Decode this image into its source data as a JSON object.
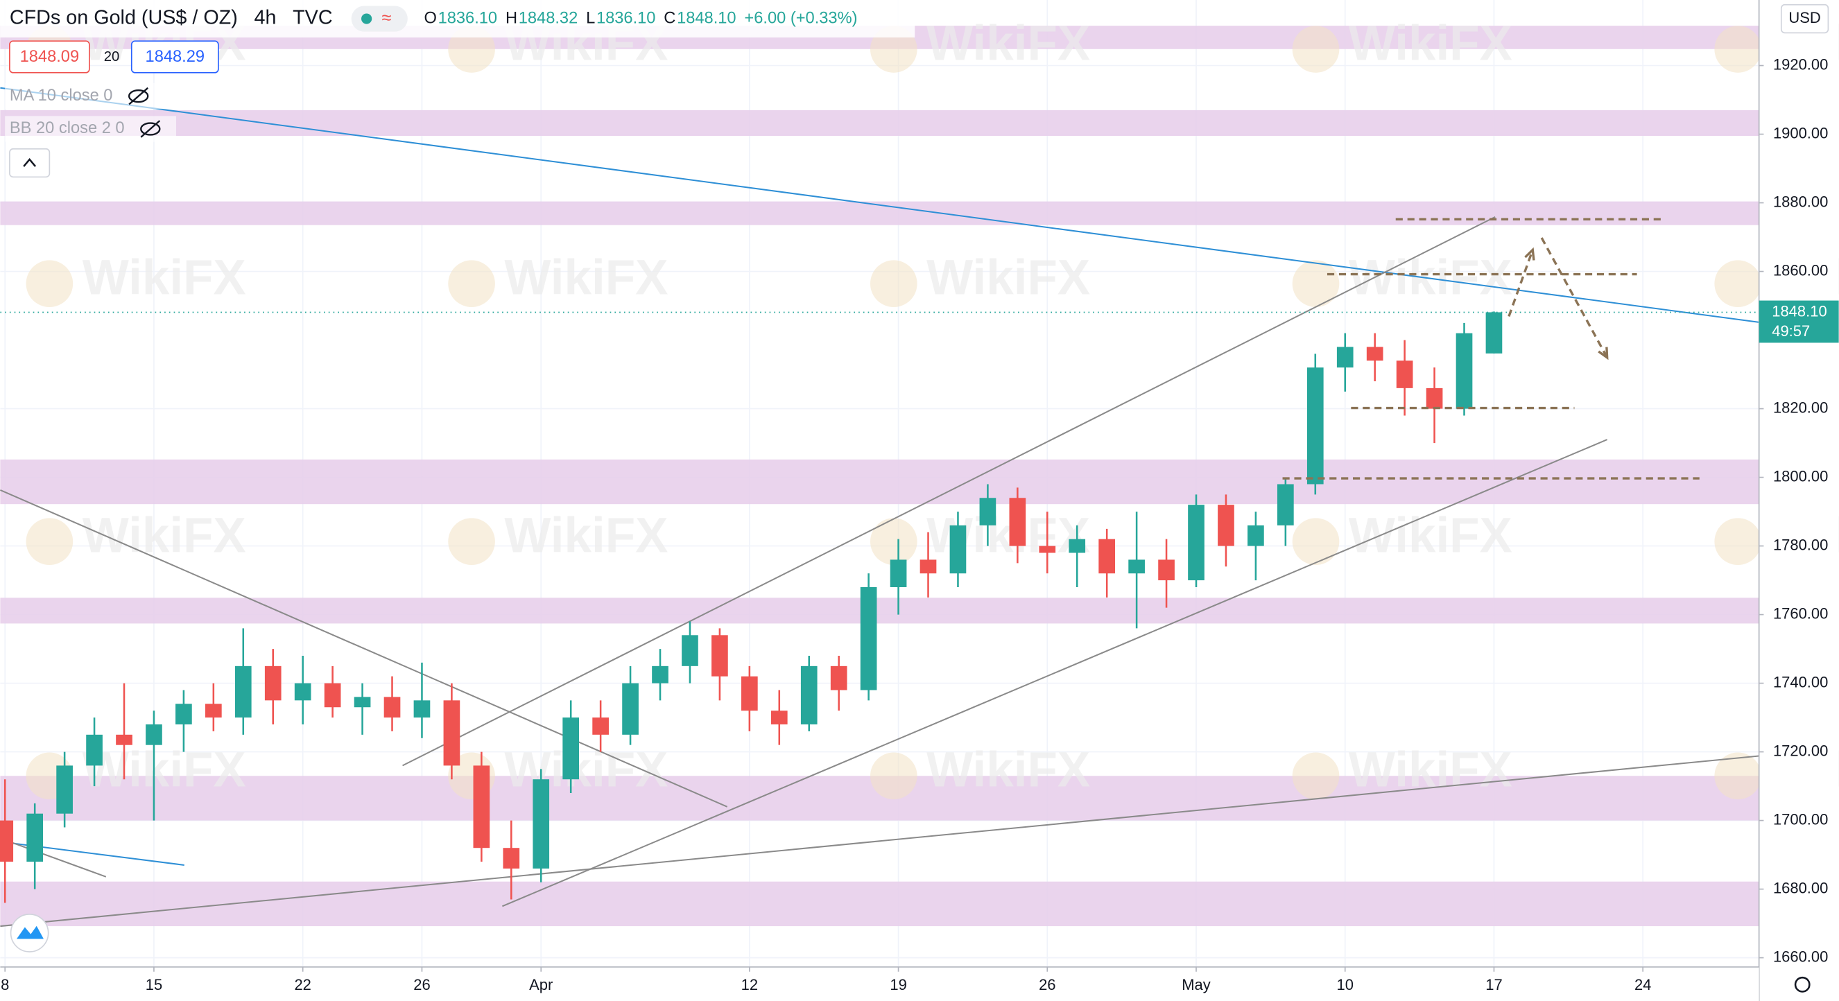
{
  "header": {
    "symbol": "CFDs on Gold (US$ / OZ)",
    "interval": "4h",
    "source": "TVC",
    "ohlc": [
      {
        "key": "O",
        "value": "1836.10"
      },
      {
        "key": "H",
        "value": "1848.32"
      },
      {
        "key": "L",
        "value": "1836.10"
      },
      {
        "key": "C",
        "value": "1848.10"
      }
    ],
    "change": "+6.00 (+0.33%)",
    "bid": "1848.09",
    "spread": "20",
    "ask": "1848.29"
  },
  "indicators": [
    "MA 10 close 0",
    "BB 20 close 2 0"
  ],
  "currency": "USD",
  "watermark": "WikiFX",
  "chart_data": {
    "type": "candlestick",
    "x": [
      0,
      1,
      2,
      3,
      4,
      5,
      6,
      7,
      8,
      9,
      10,
      11,
      12,
      13,
      14,
      15,
      16,
      17,
      18,
      19,
      20,
      21,
      22,
      23,
      24,
      25,
      26,
      27,
      28,
      29,
      30,
      31,
      32,
      33,
      34,
      35,
      36,
      37,
      38,
      39,
      40,
      41,
      42,
      43,
      44,
      45,
      46,
      47,
      48,
      49,
      50
    ],
    "open": [
      1700,
      1688,
      1702,
      1716,
      1725,
      1722,
      1728,
      1734,
      1730,
      1745,
      1735,
      1740,
      1733,
      1736,
      1730,
      1735,
      1716,
      1692,
      1686,
      1712,
      1730,
      1725,
      1740,
      1745,
      1754,
      1742,
      1732,
      1728,
      1745,
      1738,
      1768,
      1776,
      1772,
      1786,
      1794,
      1780,
      1778,
      1782,
      1772,
      1776,
      1770,
      1792,
      1780,
      1786,
      1798,
      1832,
      1838,
      1834,
      1826,
      1820,
      1836.1
    ],
    "high": [
      1712,
      1705,
      1720,
      1730,
      1740,
      1732,
      1738,
      1740,
      1756,
      1750,
      1748,
      1745,
      1740,
      1742,
      1746,
      1740,
      1720,
      1700,
      1715,
      1735,
      1735,
      1745,
      1750,
      1758,
      1756,
      1745,
      1738,
      1748,
      1748,
      1772,
      1782,
      1784,
      1790,
      1798,
      1797,
      1790,
      1786,
      1785,
      1790,
      1782,
      1795,
      1795,
      1790,
      1800,
      1836,
      1842,
      1842,
      1840,
      1832,
      1845,
      1848.32
    ],
    "low": [
      1676,
      1680,
      1698,
      1710,
      1712,
      1700,
      1720,
      1726,
      1725,
      1728,
      1728,
      1730,
      1725,
      1726,
      1724,
      1712,
      1688,
      1677,
      1682,
      1708,
      1720,
      1722,
      1735,
      1740,
      1735,
      1726,
      1722,
      1726,
      1732,
      1735,
      1760,
      1765,
      1768,
      1780,
      1775,
      1772,
      1768,
      1765,
      1756,
      1762,
      1768,
      1774,
      1770,
      1780,
      1795,
      1825,
      1828,
      1818,
      1810,
      1818,
      1836.1
    ],
    "close": [
      1688,
      1702,
      1716,
      1725,
      1722,
      1728,
      1734,
      1730,
      1745,
      1735,
      1740,
      1733,
      1736,
      1730,
      1735,
      1716,
      1692,
      1686,
      1712,
      1730,
      1725,
      1740,
      1745,
      1754,
      1742,
      1732,
      1728,
      1745,
      1738,
      1768,
      1776,
      1772,
      1786,
      1794,
      1780,
      1778,
      1782,
      1772,
      1776,
      1770,
      1792,
      1780,
      1786,
      1798,
      1832,
      1838,
      1834,
      1826,
      1820,
      1842,
      1848.1
    ],
    "up_color": "#26a69a",
    "down_color": "#ef5350",
    "xlim": [
      -0.16,
      58.9
    ],
    "xticks": [
      {
        "value": 0,
        "label": "8"
      },
      {
        "value": 5,
        "label": "15"
      },
      {
        "value": 10,
        "label": "22"
      },
      {
        "value": 14,
        "label": "26"
      },
      {
        "value": 18,
        "label": "Apr"
      },
      {
        "value": 25,
        "label": "12"
      },
      {
        "value": 30,
        "label": "19"
      },
      {
        "value": 35,
        "label": "26"
      },
      {
        "value": 40,
        "label": "May"
      },
      {
        "value": 45,
        "label": "10"
      },
      {
        "value": 50,
        "label": "17"
      },
      {
        "value": 55,
        "label": "24"
      }
    ],
    "ylim": [
      1657.3,
      1939.1
    ],
    "yticks": [
      {
        "value": 1660,
        "label": "1660.00"
      },
      {
        "value": 1680,
        "label": "1680.00"
      },
      {
        "value": 1700,
        "label": "1700.00"
      },
      {
        "value": 1720,
        "label": "1720.00"
      },
      {
        "value": 1740,
        "label": "1740.00"
      },
      {
        "value": 1760,
        "label": "1760.00"
      },
      {
        "value": 1780,
        "label": "1780.00"
      },
      {
        "value": 1800,
        "label": "1800.00"
      },
      {
        "value": 1820,
        "label": "1820.00"
      },
      {
        "value": 1860,
        "label": "1860.00"
      },
      {
        "value": 1880,
        "label": "1880.00"
      },
      {
        "value": 1900,
        "label": "1900.00"
      },
      {
        "value": 1920,
        "label": "1920.00"
      }
    ],
    "grid": true,
    "zones": {
      "color": "#e6cdea",
      "ranges": [
        [
          1924.8,
          1931.6
        ],
        [
          1899.5,
          1907
        ],
        [
          1873.5,
          1880.4
        ],
        [
          1792.2,
          1805.2
        ],
        [
          1757.4,
          1764.9
        ],
        [
          1700,
          1713
        ],
        [
          1669.2,
          1682.2
        ]
      ]
    },
    "trend_lines": [
      {
        "color": "#2e8fd6",
        "x": [
          -0.16,
          58.9
        ],
        "y": [
          1913.5,
          1845.2
        ]
      },
      {
        "color": "#8a8a8a",
        "x": [
          13.35,
          50.04
        ],
        "y": [
          1716,
          1875.9
        ]
      },
      {
        "color": "#8a8a8a",
        "x": [
          16.7,
          53.8
        ],
        "y": [
          1675,
          1811
        ]
      },
      {
        "color": "#8a8a8a",
        "x": [
          -0.16,
          58.9
        ],
        "y": [
          1669.2,
          1718.8
        ]
      },
      {
        "color": "#8a8a8a",
        "x": [
          -0.16,
          24.25
        ],
        "y": [
          1796.3,
          1704
        ]
      },
      {
        "color": "#2e8fd6",
        "x": [
          -0.16,
          6.02
        ],
        "y": [
          1693.8,
          1687
        ]
      },
      {
        "color": "#8a8a8a",
        "x": [
          -0.16,
          3.39
        ],
        "y": [
          1694.8,
          1683.6
        ]
      }
    ],
    "levels": {
      "color": "#8b7355",
      "lines": [
        {
          "x": [
            46.7,
            55.75
          ],
          "y": 1875.2
        },
        {
          "x": [
            44.4,
            54.8
          ],
          "y": 1859.2
        },
        {
          "x": [
            45.2,
            52.7
          ],
          "y": 1820.2
        },
        {
          "x": [
            42.9,
            56.9
          ],
          "y": 1799.7
        }
      ]
    },
    "arrows": [
      {
        "x": [
          50.5,
          51.3
        ],
        "y": [
          1846.9,
          1866.3
        ]
      },
      {
        "x": [
          51.6,
          53.8
        ],
        "y": [
          1869.8,
          1834.9
        ]
      }
    ],
    "last_price": {
      "value": 1848.1,
      "label": "1848.10",
      "countdown": "49:57",
      "color": "#26a69a"
    }
  }
}
